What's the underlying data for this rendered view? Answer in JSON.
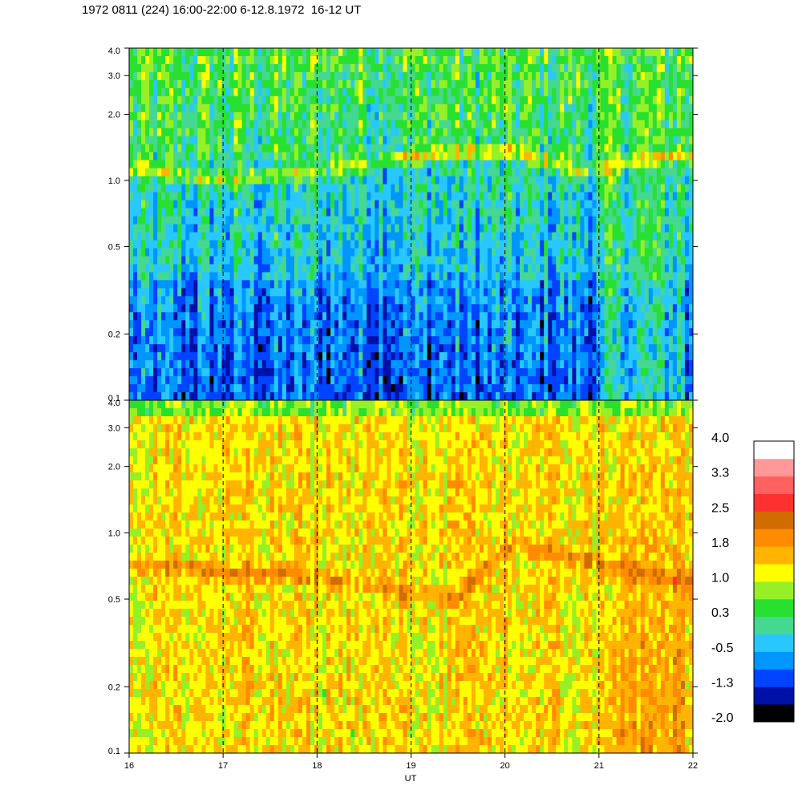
{
  "chart_data": {
    "type": "heatmap",
    "title": "1972 0811 (224) 16:00-22:00 6-12.8.1972  16-12 UT",
    "xlabel": "UT",
    "x_ticks": [
      "16",
      "17",
      "18",
      "19",
      "20",
      "21",
      "22"
    ],
    "x_range": [
      16,
      22
    ],
    "panels": [
      {
        "name": "upper",
        "y_scale": "log",
        "y_range": [
          0.1,
          4.0
        ],
        "y_ticks": [
          "4.0",
          "3.0",
          "2.0",
          "1.0",
          "0.5",
          "0.2",
          "0.1"
        ],
        "y_tick_values": [
          4.0,
          3.0,
          2.0,
          1.0,
          0.5,
          0.2,
          0.1
        ],
        "bright_band_y": [
          1.15,
          1.0,
          1.05,
          1.15,
          1.35,
          1.35,
          1.1,
          1.3
        ],
        "bright_band_x": [
          16.2,
          16.8,
          17.5,
          18.3,
          19.5,
          20.1,
          20.8,
          21.8
        ]
      },
      {
        "name": "lower",
        "y_scale": "log",
        "y_range": [
          0.1,
          4.0
        ],
        "y_ticks": [
          "4.0",
          "3.0",
          "2.0",
          "1.0",
          "0.5",
          "0.2",
          "0.1"
        ],
        "y_tick_values": [
          4.0,
          3.0,
          2.0,
          1.0,
          0.5,
          0.2,
          0.1
        ],
        "bright_band_y": [
          0.72,
          0.68,
          0.66,
          0.6,
          0.5,
          0.9,
          0.75,
          0.6
        ],
        "bright_band_x": [
          16.2,
          16.8,
          17.5,
          18.3,
          19.5,
          20.1,
          20.8,
          21.8
        ]
      }
    ],
    "dashed_verticals": [
      17,
      18,
      19,
      20,
      21
    ],
    "colorbar": {
      "labels": [
        "4.0",
        "3.3",
        "2.5",
        "1.8",
        "1.0",
        "0.3",
        "-0.5",
        "-1.3",
        "-2.0"
      ],
      "range": [
        -2.0,
        4.0
      ],
      "colors": [
        "#000000",
        "#0011a8",
        "#0044ff",
        "#0096ff",
        "#28c8ff",
        "#44d890",
        "#28e030",
        "#96f028",
        "#ffff00",
        "#ffb400",
        "#ff8c00",
        "#d06c00",
        "#ff3030",
        "#ff6060",
        "#ff9898",
        "#ffffff"
      ]
    }
  }
}
